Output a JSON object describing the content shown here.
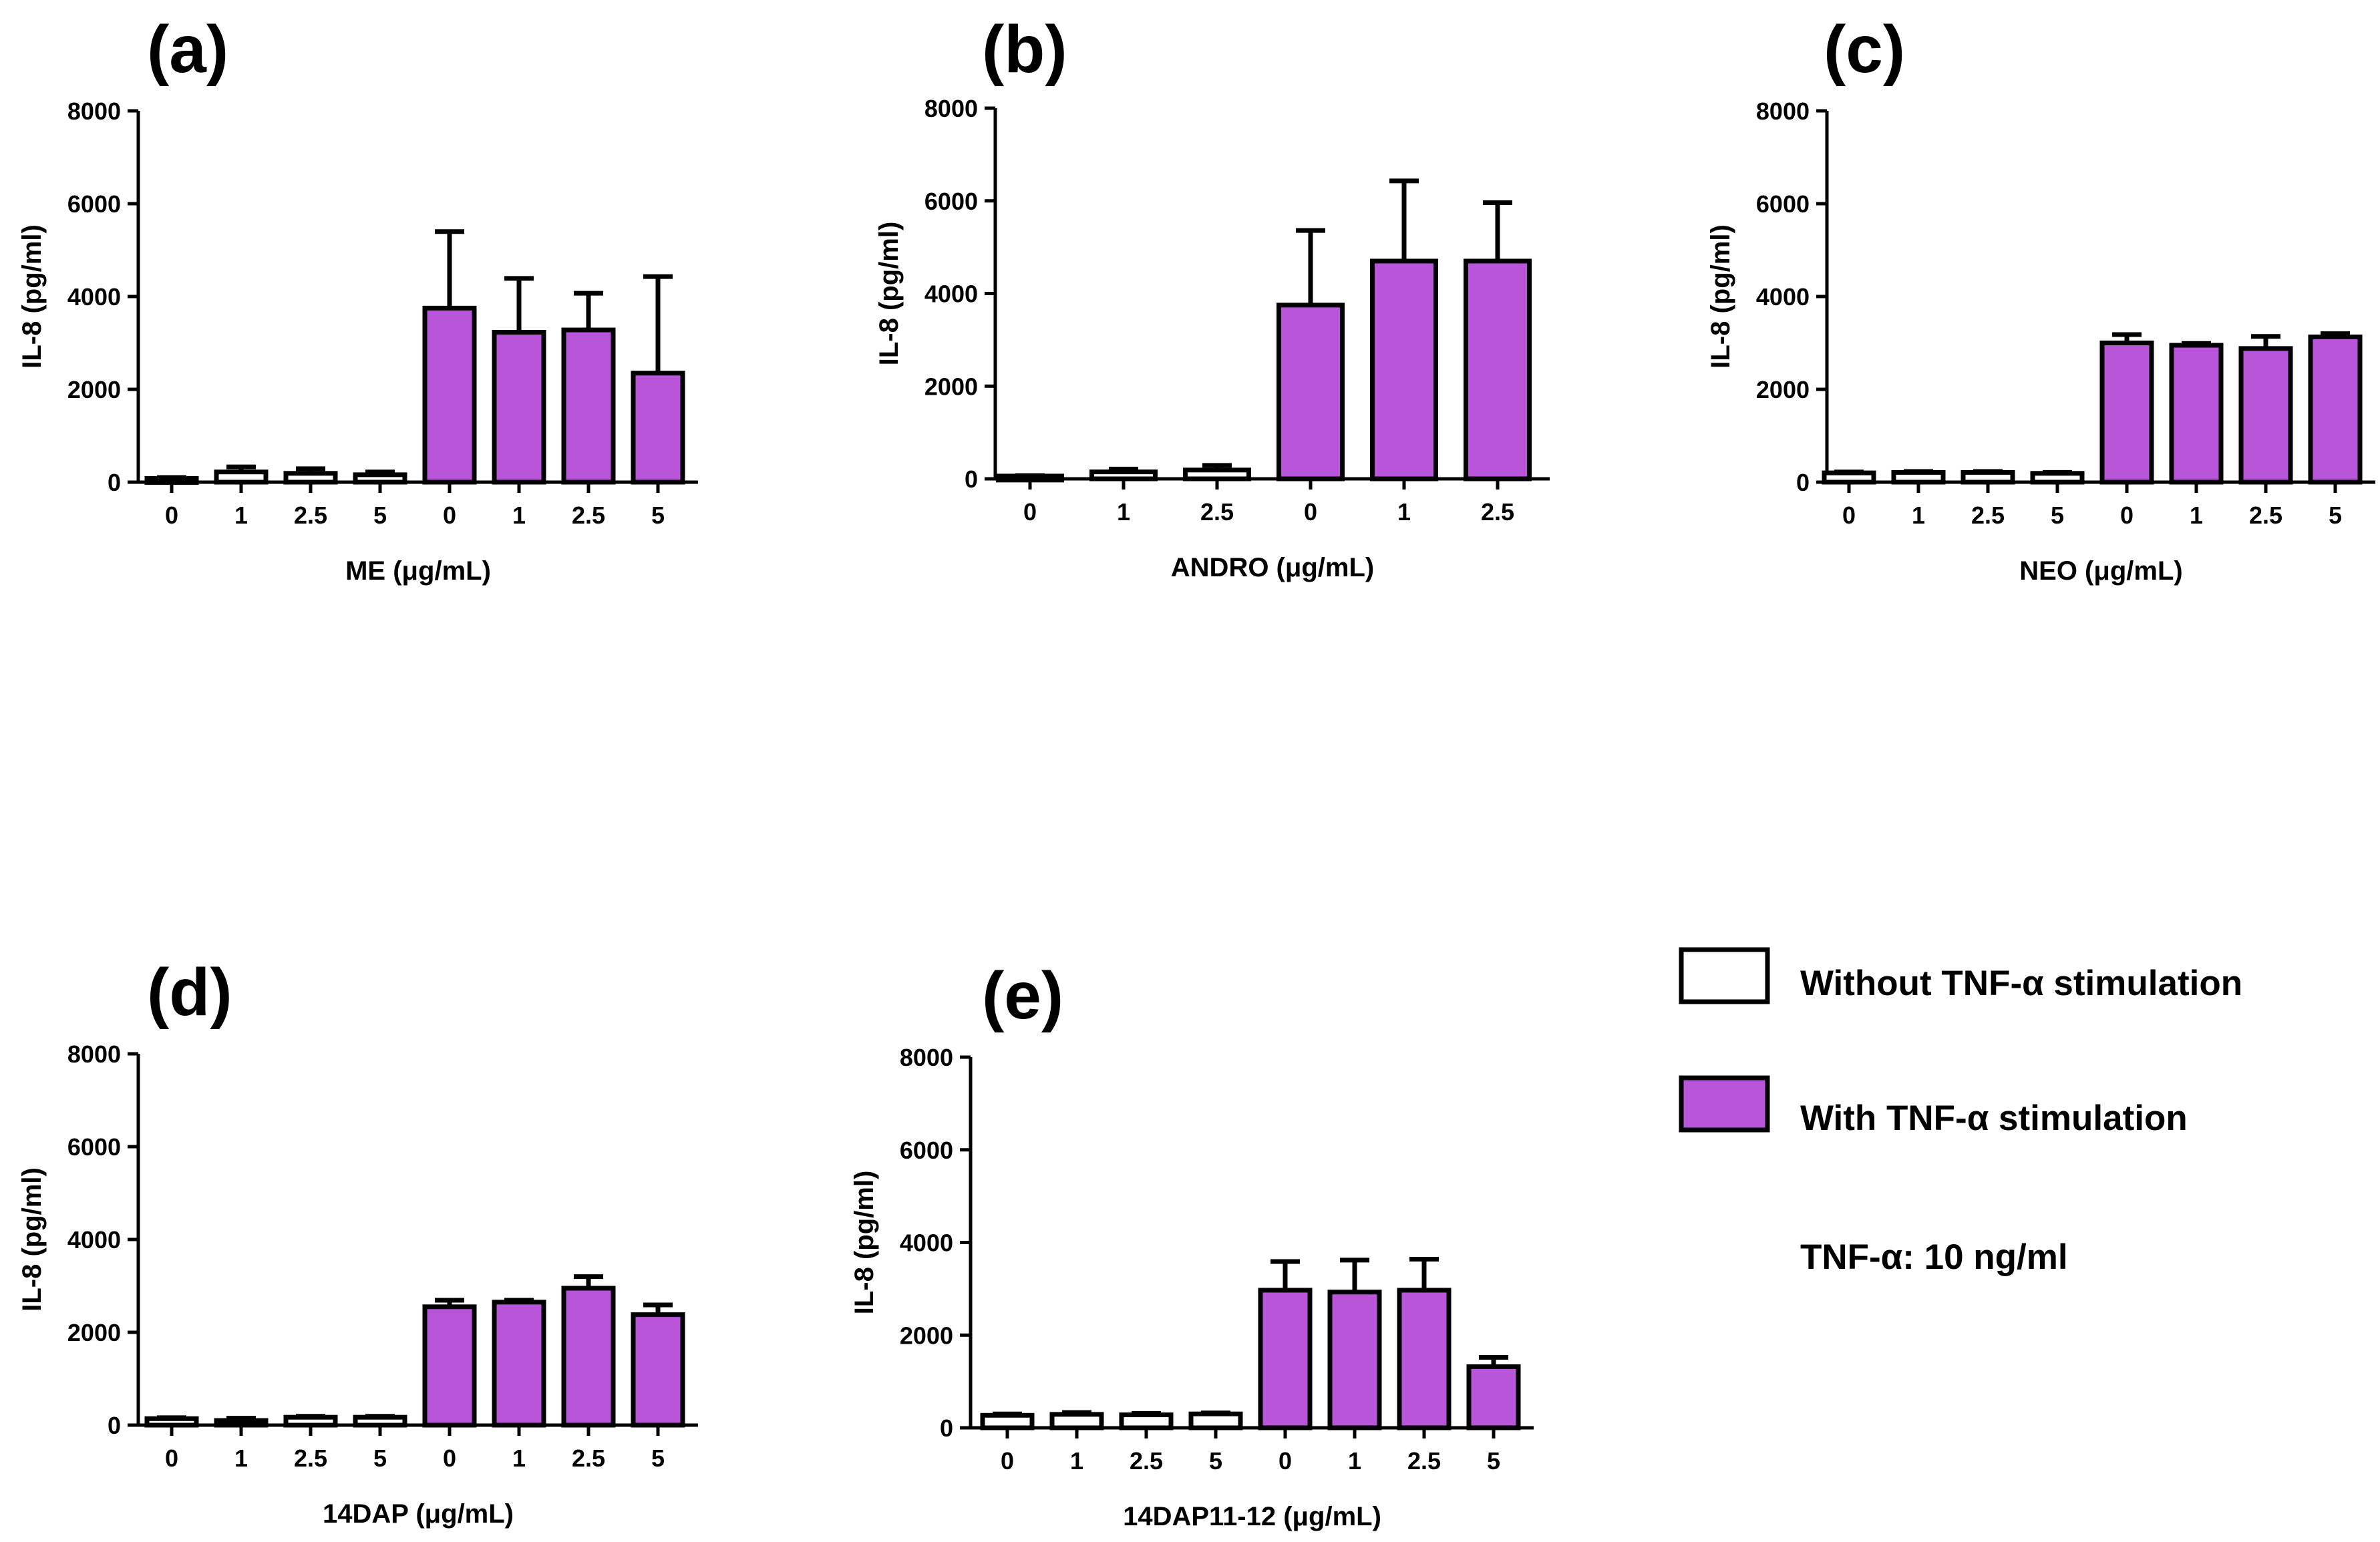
{
  "colors": {
    "with_tnf": "#B855D9",
    "without_tnf": "#FFFFFF",
    "stroke": "#000000"
  },
  "chart_data": [
    {
      "type": "bar",
      "panel": "(a)",
      "xlabel": "ME (μg/mL)",
      "ylabel": "IL-8 (pg/ml)",
      "ylim": [
        0,
        8000
      ],
      "yticks": [
        "0",
        "2000",
        "4000",
        "6000",
        "8000"
      ],
      "categories": [
        "0",
        "1",
        "2.5",
        "5",
        "0",
        "1",
        "2.5",
        "5"
      ],
      "values": [
        80,
        220,
        190,
        160,
        3750,
        3230,
        3280,
        2350
      ],
      "errors": [
        20,
        110,
        100,
        60,
        1650,
        1160,
        790,
        2080
      ],
      "groups": [
        "without",
        "without",
        "without",
        "without",
        "with",
        "with",
        "with",
        "with"
      ]
    },
    {
      "type": "bar",
      "panel": "(b)",
      "xlabel": "ANDRO (μg/mL)",
      "ylabel": "IL-8 (pg/ml)",
      "ylim": [
        0,
        8000
      ],
      "yticks": [
        "0",
        "2000",
        "4000",
        "6000",
        "8000"
      ],
      "categories": [
        "0",
        "1",
        "2.5",
        "0",
        "1",
        "2.5"
      ],
      "values": [
        60,
        150,
        190,
        3750,
        4700,
        4700
      ],
      "errors": [
        10,
        60,
        100,
        1610,
        1730,
        1260
      ],
      "groups": [
        "without",
        "without",
        "without",
        "with",
        "with",
        "with"
      ]
    },
    {
      "type": "bar",
      "panel": "(c)",
      "xlabel": "NEO (μg/mL)",
      "ylabel": "IL-8 (pg/ml)",
      "ylim": [
        0,
        8000
      ],
      "yticks": [
        "0",
        "2000",
        "4000",
        "6000",
        "8000"
      ],
      "categories": [
        "0",
        "1",
        "2.5",
        "5",
        "0",
        "1",
        "2.5",
        "5"
      ],
      "values": [
        200,
        210,
        210,
        190,
        3000,
        2950,
        2880,
        3130
      ],
      "errors": [
        20,
        20,
        20,
        20,
        180,
        40,
        260,
        70
      ],
      "groups": [
        "without",
        "without",
        "without",
        "without",
        "with",
        "with",
        "with",
        "with"
      ]
    },
    {
      "type": "bar",
      "panel": "(d)",
      "xlabel": "14DAP (μg/mL)",
      "ylabel": "IL-8 (pg/ml)",
      "ylim": [
        0,
        8000
      ],
      "yticks": [
        "0",
        "2000",
        "4000",
        "6000",
        "8000"
      ],
      "categories": [
        "0",
        "1",
        "2.5",
        "5",
        "0",
        "1",
        "2.5",
        "5"
      ],
      "values": [
        140,
        100,
        170,
        170,
        2550,
        2650,
        2950,
        2380
      ],
      "errors": [
        20,
        50,
        20,
        20,
        140,
        40,
        250,
        210
      ],
      "groups": [
        "without",
        "without",
        "without",
        "without",
        "with",
        "with",
        "with",
        "with"
      ]
    },
    {
      "type": "bar",
      "panel": "(e)",
      "xlabel": "14DAP11-12 (μg/mL)",
      "ylabel": "IL-8 (pg/ml)",
      "ylim": [
        0,
        8000
      ],
      "yticks": [
        "0",
        "2000",
        "4000",
        "6000",
        "8000"
      ],
      "categories": [
        "0",
        "1",
        "2.5",
        "5",
        "0",
        "1",
        "2.5",
        "5"
      ],
      "values": [
        270,
        290,
        280,
        300,
        2970,
        2930,
        2970,
        1320
      ],
      "errors": [
        30,
        40,
        30,
        20,
        620,
        690,
        670,
        200
      ],
      "groups": [
        "without",
        "without",
        "without",
        "without",
        "with",
        "with",
        "with",
        "with"
      ]
    }
  ],
  "legend": {
    "without_label": "Without TNF-α stimulation",
    "with_label": "With TNF-α stimulation",
    "note": "TNF-α: 10 ng/ml"
  }
}
